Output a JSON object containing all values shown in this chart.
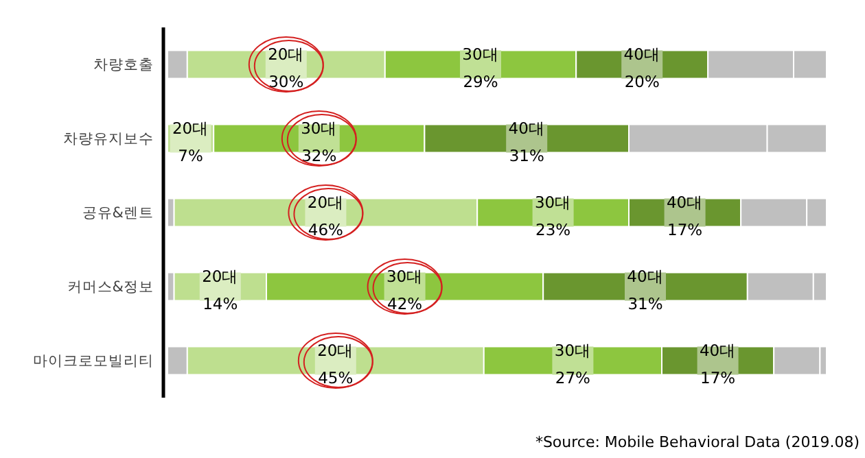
{
  "chart_data": {
    "type": "bar",
    "orientation": "horizontal",
    "stacked": true,
    "categories": [
      "차량호출",
      "차량유지보수",
      "공유&렌트",
      "커머스&정보",
      "마이크로모빌리티"
    ],
    "xlim": [
      0,
      100
    ],
    "tick_labels": "y",
    "series": [
      {
        "color": "#bfbfbf",
        "values": [
          3,
          0,
          1,
          1,
          3
        ]
      },
      {
        "name": "20대",
        "color": "#bedf8f",
        "values": [
          30,
          7,
          46,
          14,
          45
        ],
        "value_labels": [
          "30%",
          "7%",
          "46%",
          "14%",
          "45%"
        ]
      },
      {
        "name": "30대",
        "color": "#8dc63f",
        "values": [
          29,
          32,
          23,
          42,
          27
        ],
        "value_labels": [
          "29%",
          "32%",
          "23%",
          "42%",
          "27%"
        ]
      },
      {
        "name": "40대",
        "color": "#6a962f",
        "values": [
          20,
          31,
          17,
          31,
          17
        ],
        "value_labels": [
          "20%",
          "31%",
          "17%",
          "31%",
          "17%"
        ]
      },
      {
        "color": "#bfbfbf",
        "values": [
          13,
          21,
          10,
          10,
          7
        ]
      },
      {
        "color": "#bfbfbf",
        "values": [
          5,
          9,
          3,
          2,
          1
        ]
      }
    ],
    "annotations": [
      "*Source: Mobile Behavioral Data (2019.08)"
    ]
  }
}
